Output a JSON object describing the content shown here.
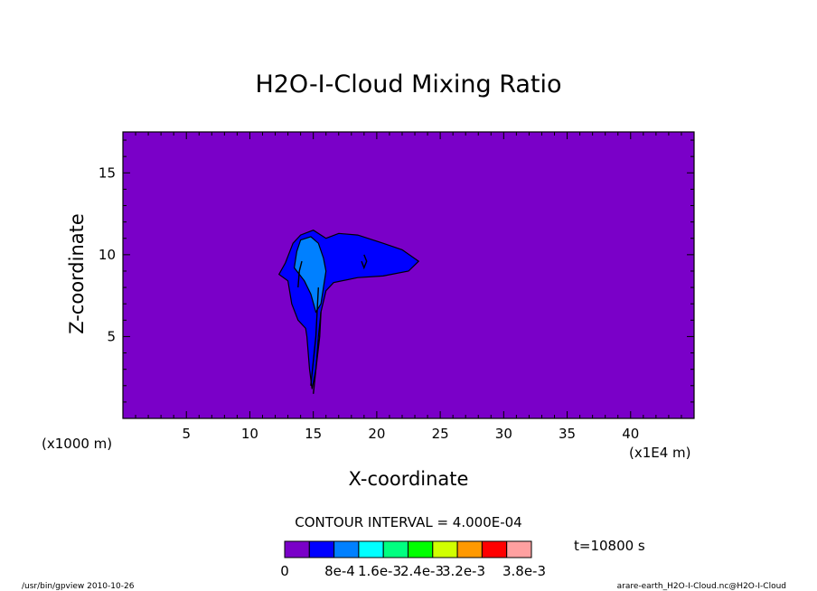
{
  "chart_data": {
    "type": "contour",
    "title": "H2O-I-Cloud Mixing Ratio",
    "xlabel": "X-coordinate",
    "ylabel": "Z-coordinate",
    "xunit_left": "(x1000 m)",
    "xunit_right": "(x1E4 m)",
    "x_ticks": [
      5,
      10,
      15,
      20,
      25,
      30,
      35,
      40
    ],
    "y_ticks": [
      5,
      10,
      15
    ],
    "xlim": [
      0,
      45
    ],
    "ylim": [
      0,
      17.5
    ],
    "contour_interval_text": "CONTOUR INTERVAL = 4.000E-04",
    "time_text": "t=10800 s",
    "colorbar": {
      "colors": [
        "#7a00c8",
        "#0000ff",
        "#0080ff",
        "#00ffff",
        "#00ff80",
        "#00ff00",
        "#d0ff00",
        "#ff9900",
        "#ff0000",
        "#ffa0a0"
      ],
      "labels": [
        "0",
        "8e-4",
        "1.6e-3",
        "2.4e-3",
        "3.2e-3",
        "3.8e-3"
      ]
    },
    "background_color": "#7a00c8",
    "cloud_regions": [
      {
        "level": 1,
        "color": "#0000ff",
        "points": [
          [
            12.3,
            8.8
          ],
          [
            12.8,
            9.5
          ],
          [
            13.4,
            10.7
          ],
          [
            14,
            11.2
          ],
          [
            15,
            11.5
          ],
          [
            16,
            11
          ],
          [
            17,
            11.3
          ],
          [
            18.5,
            11.2
          ],
          [
            20.5,
            10.7
          ],
          [
            22,
            10.3
          ],
          [
            23.3,
            9.6
          ],
          [
            22.5,
            9.0
          ],
          [
            20.5,
            8.7
          ],
          [
            18.5,
            8.6
          ],
          [
            16.6,
            8.3
          ],
          [
            16,
            7.8
          ],
          [
            15.6,
            6.5
          ],
          [
            15.4,
            5
          ],
          [
            15.2,
            3
          ],
          [
            14.9,
            1.8
          ],
          [
            14.7,
            3
          ],
          [
            14.5,
            5
          ],
          [
            14.4,
            5.5
          ],
          [
            13.8,
            6
          ],
          [
            13.3,
            7
          ],
          [
            13,
            8.4
          ]
        ]
      },
      {
        "level": 2,
        "color": "#0080ff",
        "points": [
          [
            13.5,
            9.2
          ],
          [
            13.7,
            10.2
          ],
          [
            14,
            10.9
          ],
          [
            14.8,
            11.1
          ],
          [
            15.4,
            10.7
          ],
          [
            15.8,
            9.8
          ],
          [
            16,
            9
          ],
          [
            15.8,
            8
          ],
          [
            15.6,
            7
          ],
          [
            15.2,
            6.5
          ],
          [
            14.8,
            7.6
          ],
          [
            14.3,
            8.4
          ]
        ]
      }
    ],
    "contour_lines": [
      [
        [
          14.8,
          2
        ],
        [
          15,
          3.5
        ],
        [
          15.2,
          5
        ],
        [
          15.3,
          6.5
        ],
        [
          15.4,
          8
        ]
      ],
      [
        [
          15,
          1.5
        ],
        [
          15.2,
          3
        ],
        [
          15.5,
          5
        ],
        [
          15.6,
          6.5
        ]
      ],
      [
        [
          13.8,
          8
        ],
        [
          13.9,
          9
        ],
        [
          14.1,
          9.6
        ]
      ],
      [
        [
          18.8,
          9.6
        ],
        [
          19,
          9.2
        ],
        [
          19.2,
          9.6
        ],
        [
          19,
          10
        ]
      ]
    ],
    "footer_left": "/usr/bin/gpview   2010-10-26",
    "footer_right": "arare-earth_H2O-I-Cloud.nc@H2O-I-Cloud"
  }
}
